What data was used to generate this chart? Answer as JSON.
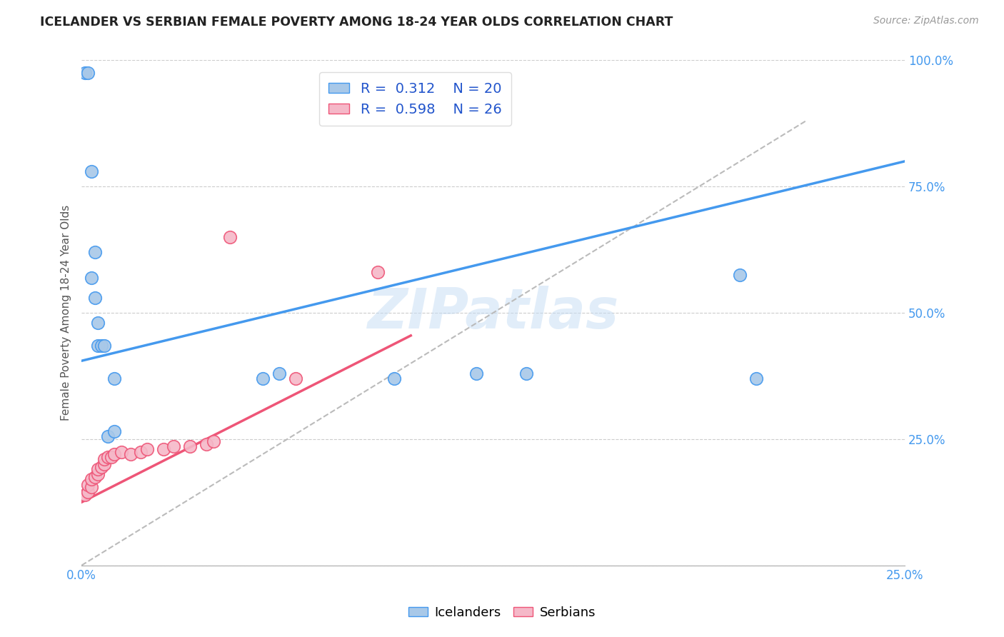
{
  "title": "ICELANDER VS SERBIAN FEMALE POVERTY AMONG 18-24 YEAR OLDS CORRELATION CHART",
  "source": "Source: ZipAtlas.com",
  "ylabel": "Female Poverty Among 18-24 Year Olds",
  "xlim": [
    0.0,
    0.25
  ],
  "ylim": [
    0.0,
    1.0
  ],
  "xticks": [
    0.0,
    0.025,
    0.05,
    0.075,
    0.1,
    0.125,
    0.15,
    0.175,
    0.2,
    0.225,
    0.25
  ],
  "yticks": [
    0.0,
    0.25,
    0.5,
    0.75,
    1.0
  ],
  "icelanders_color": "#a8c8e8",
  "serbians_color": "#f5b8c8",
  "icelanders_line_color": "#4499ee",
  "serbians_line_color": "#ee5577",
  "reference_line_color": "#bbbbbb",
  "legend_text_color": "#2255cc",
  "R_icelanders": 0.312,
  "N_icelanders": 20,
  "R_serbians": 0.598,
  "N_serbians": 26,
  "watermark": "ZIPatlas",
  "ice_line_x0": 0.0,
  "ice_line_y0": 0.405,
  "ice_line_x1": 0.25,
  "ice_line_y1": 0.8,
  "ser_line_x0": 0.0,
  "ser_line_y0": 0.125,
  "ser_line_x1": 0.1,
  "ser_line_y1": 0.455,
  "ref_line_x0": 0.0,
  "ref_line_y0": 0.0,
  "ref_line_x1": 0.22,
  "ref_line_y1": 0.88,
  "icelanders_x": [
    0.008,
    0.01,
    0.001,
    0.002,
    0.003,
    0.004,
    0.003,
    0.004,
    0.005,
    0.005,
    0.006,
    0.007,
    0.01,
    0.055,
    0.06,
    0.095,
    0.12,
    0.135,
    0.2,
    0.205
  ],
  "icelanders_y": [
    0.255,
    0.265,
    0.975,
    0.975,
    0.78,
    0.62,
    0.57,
    0.53,
    0.48,
    0.435,
    0.435,
    0.435,
    0.37,
    0.37,
    0.38,
    0.37,
    0.38,
    0.38,
    0.575,
    0.37
  ],
  "serbians_x": [
    0.001,
    0.002,
    0.002,
    0.003,
    0.003,
    0.004,
    0.005,
    0.005,
    0.006,
    0.007,
    0.007,
    0.008,
    0.009,
    0.01,
    0.012,
    0.015,
    0.018,
    0.02,
    0.025,
    0.028,
    0.033,
    0.038,
    0.04,
    0.045,
    0.065,
    0.09
  ],
  "serbians_y": [
    0.14,
    0.145,
    0.16,
    0.155,
    0.17,
    0.175,
    0.18,
    0.19,
    0.195,
    0.2,
    0.21,
    0.215,
    0.215,
    0.22,
    0.225,
    0.22,
    0.225,
    0.23,
    0.23,
    0.235,
    0.235,
    0.24,
    0.245,
    0.65,
    0.37,
    0.58
  ]
}
